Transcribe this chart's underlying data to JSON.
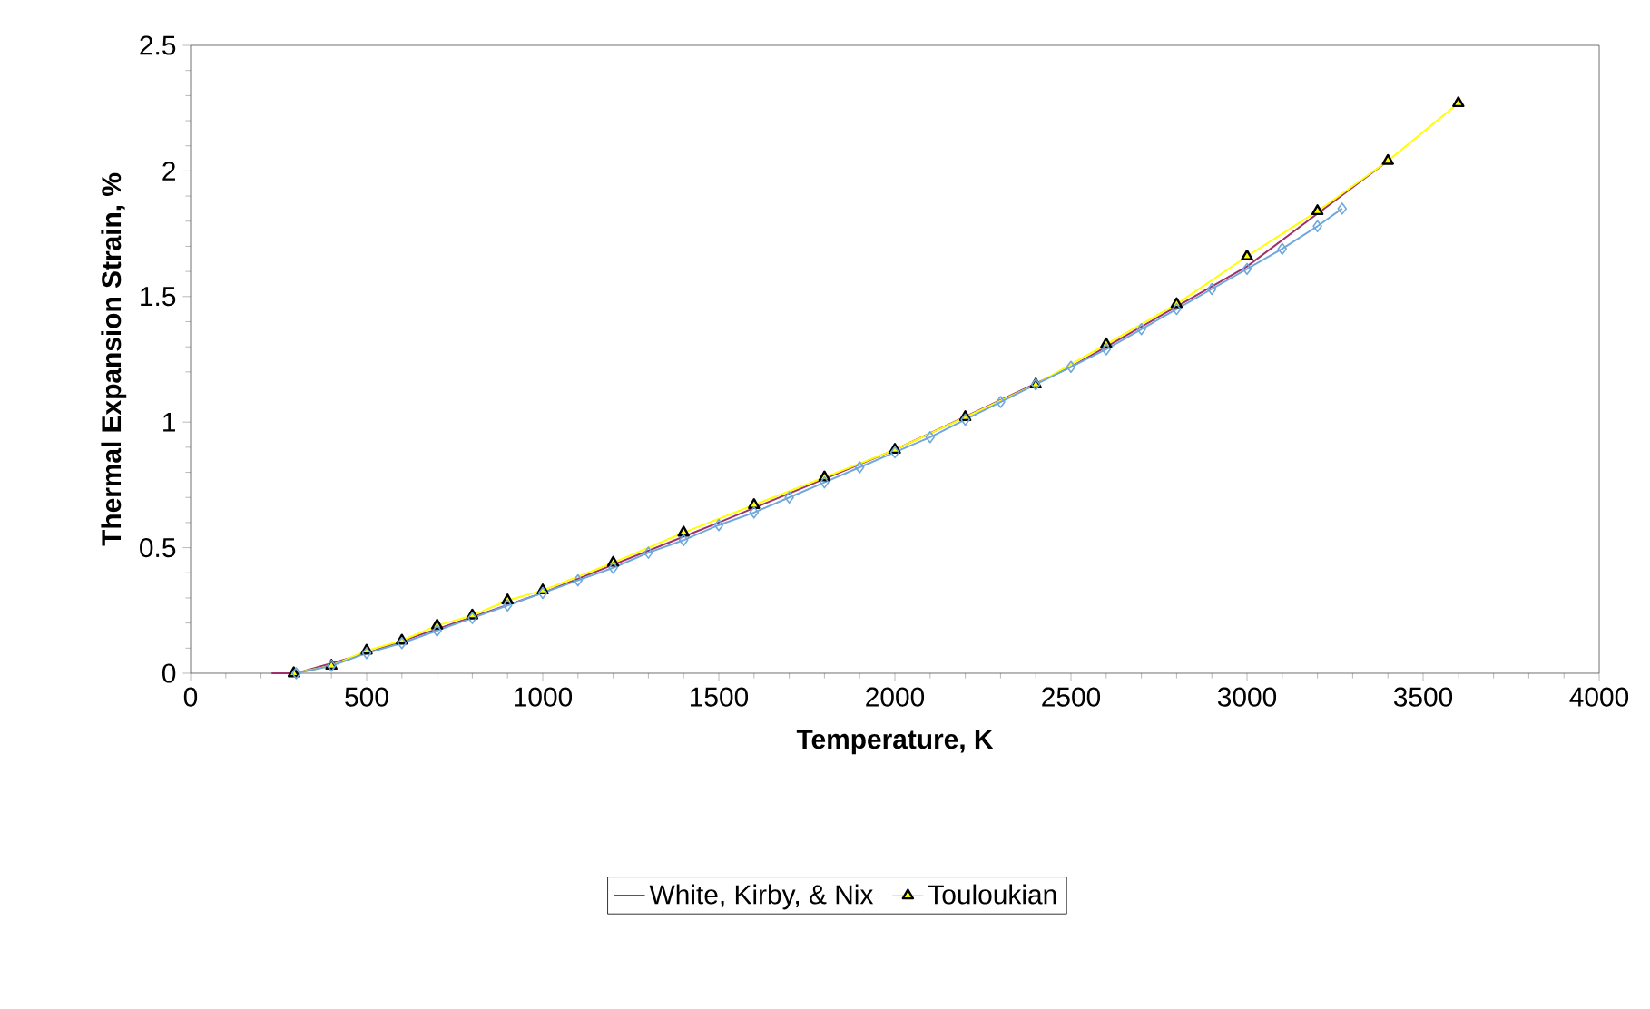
{
  "chart_data": {
    "type": "line",
    "xlabel": "Temperature, K",
    "ylabel": "Thermal Expansion Strain, %",
    "xlim": [
      0,
      4000
    ],
    "xticks": [
      0,
      500,
      1000,
      1500,
      2000,
      2500,
      3000,
      3500,
      4000
    ],
    "ylim": [
      0,
      2.5
    ],
    "yticks": [
      0,
      0.5,
      1,
      1.5,
      2,
      2.5
    ],
    "grid": false,
    "legend": "bottom",
    "line_style": "solid",
    "series": [
      {
        "name": "White, Kirby, & Nix",
        "color": "#a0306a",
        "marker": "none",
        "x": [
          230,
          300,
          500,
          1000,
          1500,
          2000,
          2500,
          3000,
          3400
        ],
        "values": [
          0,
          0.0,
          0.08,
          0.32,
          0.6,
          0.89,
          1.22,
          1.62,
          2.04
        ]
      },
      {
        "name": "Touloukian",
        "color": "#ffff00",
        "marker": "triangle",
        "x": [
          293,
          400,
          500,
          600,
          700,
          800,
          900,
          1000,
          1200,
          1400,
          1600,
          1800,
          2000,
          2200,
          2400,
          2600,
          2800,
          3000,
          3200,
          3400,
          3600
        ],
        "values": [
          0,
          0.03,
          0.09,
          0.13,
          0.19,
          0.23,
          0.29,
          0.33,
          0.44,
          0.56,
          0.67,
          0.78,
          0.89,
          1.02,
          1.15,
          1.31,
          1.47,
          1.66,
          1.84,
          2.04,
          2.27
        ]
      },
      {
        "color": "#6fa8dc",
        "marker": "diamond",
        "x": [
          300,
          400,
          500,
          600,
          700,
          800,
          900,
          1000,
          1100,
          1200,
          1300,
          1400,
          1500,
          1600,
          1700,
          1800,
          1900,
          2000,
          2100,
          2200,
          2300,
          2400,
          2500,
          2600,
          2700,
          2800,
          2900,
          3000,
          3100,
          3200,
          3270
        ],
        "values": [
          0,
          0.03,
          0.08,
          0.12,
          0.17,
          0.22,
          0.27,
          0.32,
          0.37,
          0.42,
          0.48,
          0.53,
          0.59,
          0.64,
          0.7,
          0.76,
          0.82,
          0.88,
          0.94,
          1.01,
          1.08,
          1.15,
          1.22,
          1.29,
          1.37,
          1.45,
          1.53,
          1.61,
          1.69,
          1.78,
          1.85
        ]
      }
    ]
  }
}
